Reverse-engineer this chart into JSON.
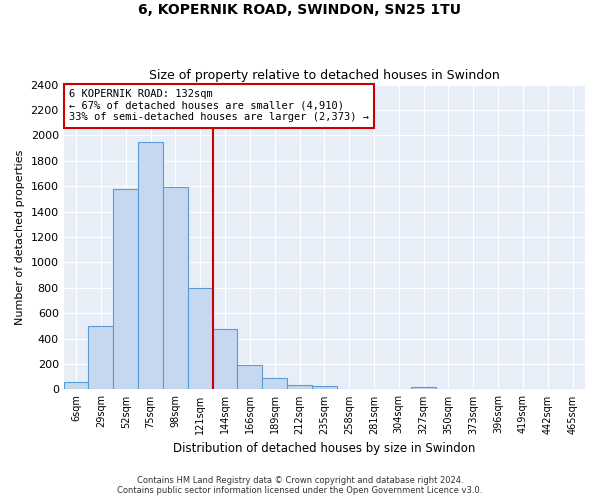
{
  "title1": "6, KOPERNIK ROAD, SWINDON, SN25 1TU",
  "title2": "Size of property relative to detached houses in Swindon",
  "xlabel": "Distribution of detached houses by size in Swindon",
  "ylabel": "Number of detached properties",
  "bar_labels": [
    "6sqm",
    "29sqm",
    "52sqm",
    "75sqm",
    "98sqm",
    "121sqm",
    "144sqm",
    "166sqm",
    "189sqm",
    "212sqm",
    "235sqm",
    "258sqm",
    "281sqm",
    "304sqm",
    "327sqm",
    "350sqm",
    "373sqm",
    "396sqm",
    "419sqm",
    "442sqm",
    "465sqm"
  ],
  "bar_values": [
    60,
    500,
    1580,
    1950,
    1590,
    800,
    475,
    195,
    90,
    35,
    25,
    0,
    0,
    0,
    20,
    0,
    0,
    0,
    0,
    0,
    0
  ],
  "bar_color": "#c5d8f0",
  "bar_edgecolor": "#5b9bd5",
  "vline_x_index": 5.5,
  "annotation_text": "6 KOPERNIK ROAD: 132sqm\n← 67% of detached houses are smaller (4,910)\n33% of semi-detached houses are larger (2,373) →",
  "annotation_box_color": "#ffffff",
  "annotation_box_edgecolor": "#cc0000",
  "vline_color": "#cc0000",
  "ylim": [
    0,
    2400
  ],
  "yticks": [
    0,
    200,
    400,
    600,
    800,
    1000,
    1200,
    1400,
    1600,
    1800,
    2000,
    2200,
    2400
  ],
  "footer1": "Contains HM Land Registry data © Crown copyright and database right 2024.",
  "footer2": "Contains public sector information licensed under the Open Government Licence v3.0.",
  "background_color": "#ffffff",
  "axes_background": "#e8eef8"
}
